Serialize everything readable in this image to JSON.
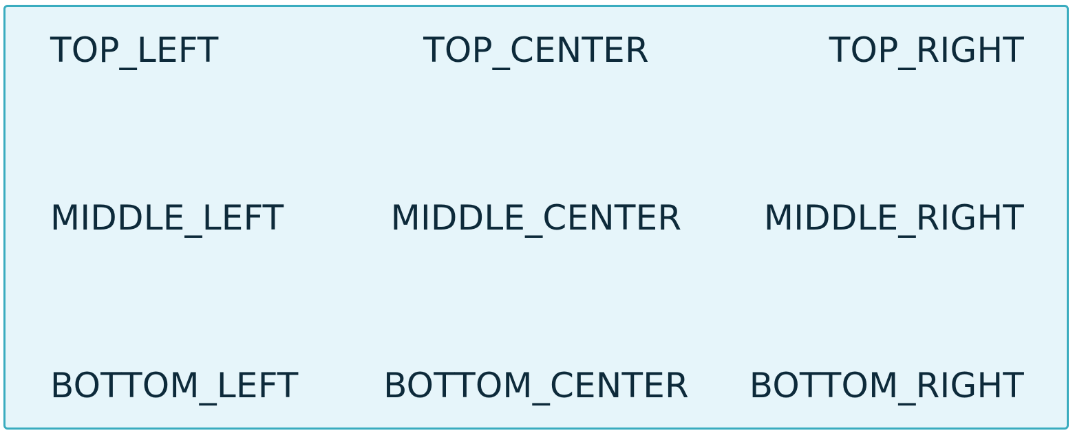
{
  "labels": {
    "top_left": "TOP_LEFT",
    "top_center": "TOP_CENTER",
    "top_right": "TOP_RIGHT",
    "middle_left": "MIDDLE_LEFT",
    "middle_center": "MIDDLE_CENTER",
    "middle_right": "MIDDLE_RIGHT",
    "bottom_left": "BOTTOM_LEFT",
    "bottom_center": "BOTTOM_CENTER",
    "bottom_right": "BOTTOM_RIGHT"
  },
  "colors": {
    "panel_background": "#e6f5fa",
    "panel_border": "#3aacbf",
    "text": "#0d2a3a"
  }
}
